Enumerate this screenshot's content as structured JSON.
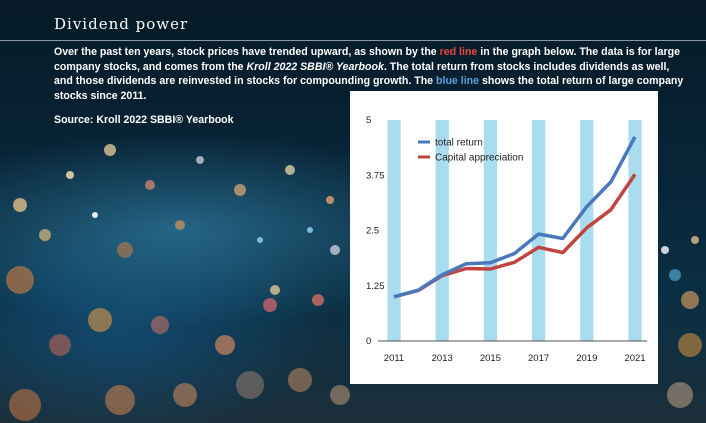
{
  "title": "Dividend power",
  "intro": {
    "p1": "Over the past ten years, stock prices have trended upward, as shown by the ",
    "red_link": "red line",
    "p2": " in the graph below. The data is for large company stocks, and comes from the ",
    "book": "Kroll 2022 SBBI® Yearbook",
    "p3": ". The total return from stocks includes dividends as well, and those dividends are reinvested in stocks for compounding growth. The ",
    "blue_link": "blue line",
    "p4": " shows the total return of large company stocks since 2011."
  },
  "source": "Source: Kroll 2022 SBBI® Yearbook",
  "colors": {
    "total_return": "#4a78be",
    "capital_appreciation": "#c0443e",
    "band": "#a8dcee"
  },
  "chart_data": {
    "type": "line",
    "x": [
      2011,
      2012,
      2013,
      2014,
      2015,
      2016,
      2017,
      2018,
      2019,
      2020,
      2021
    ],
    "x_tick_labels": [
      "2011",
      "2013",
      "2015",
      "2017",
      "2019",
      "2021"
    ],
    "y_tick_labels": [
      "0",
      "1.25",
      "2.5",
      "3.75",
      "5"
    ],
    "ylim": [
      0,
      5
    ],
    "grid": false,
    "legend_position": "top-left",
    "background": "alternating vertical bands",
    "series": [
      {
        "name": "total return",
        "values": [
          1.0,
          1.15,
          1.5,
          1.75,
          1.77,
          1.98,
          2.42,
          2.32,
          3.04,
          3.6,
          4.62
        ]
      },
      {
        "name": "Capital appreciation",
        "values": [
          1.0,
          1.14,
          1.48,
          1.64,
          1.63,
          1.78,
          2.12,
          2.0,
          2.56,
          2.97,
          3.77
        ]
      }
    ]
  }
}
